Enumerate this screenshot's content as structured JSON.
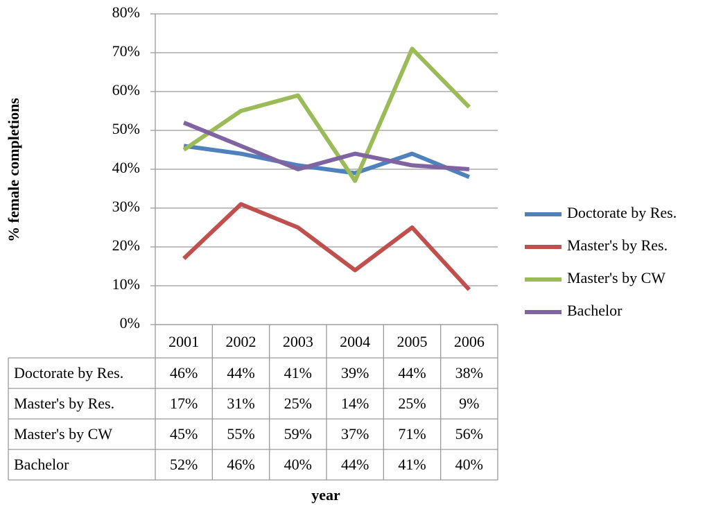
{
  "chart_data": {
    "type": "line",
    "ylabel": "% female completions",
    "xlabel": "year",
    "categories": [
      "2001",
      "2002",
      "2003",
      "2004",
      "2005",
      "2006"
    ],
    "series": [
      {
        "name": "Doctorate by Res.",
        "color": "#4f81bd",
        "values": [
          46,
          44,
          41,
          39,
          44,
          38
        ],
        "value_labels": [
          "46%",
          "44%",
          "41%",
          "39%",
          "44%",
          "38%"
        ]
      },
      {
        "name": "Master's by Res.",
        "color": "#c0504d",
        "values": [
          17,
          31,
          25,
          14,
          25,
          9
        ],
        "value_labels": [
          "17%",
          "31%",
          "25%",
          "14%",
          "25%",
          "9%"
        ]
      },
      {
        "name": "Master's by CW",
        "color": "#9bbb59",
        "values": [
          45,
          55,
          59,
          37,
          71,
          56
        ],
        "value_labels": [
          "45%",
          "55%",
          "59%",
          "37%",
          "71%",
          "56%"
        ]
      },
      {
        "name": "Bachelor",
        "color": "#8064a2",
        "values": [
          52,
          46,
          40,
          44,
          41,
          40
        ],
        "value_labels": [
          "52%",
          "46%",
          "40%",
          "44%",
          "41%",
          "40%"
        ]
      }
    ],
    "ylim": [
      0,
      80
    ],
    "yticks": [
      {
        "value": 0,
        "label": "0%"
      },
      {
        "value": 10,
        "label": "10%"
      },
      {
        "value": 20,
        "label": "20%"
      },
      {
        "value": 30,
        "label": "30%"
      },
      {
        "value": 40,
        "label": "40%"
      },
      {
        "value": 50,
        "label": "50%"
      },
      {
        "value": 60,
        "label": "60%"
      },
      {
        "value": 70,
        "label": "70%"
      },
      {
        "value": 80,
        "label": "80%"
      }
    ],
    "grid": true,
    "legend": "right"
  }
}
